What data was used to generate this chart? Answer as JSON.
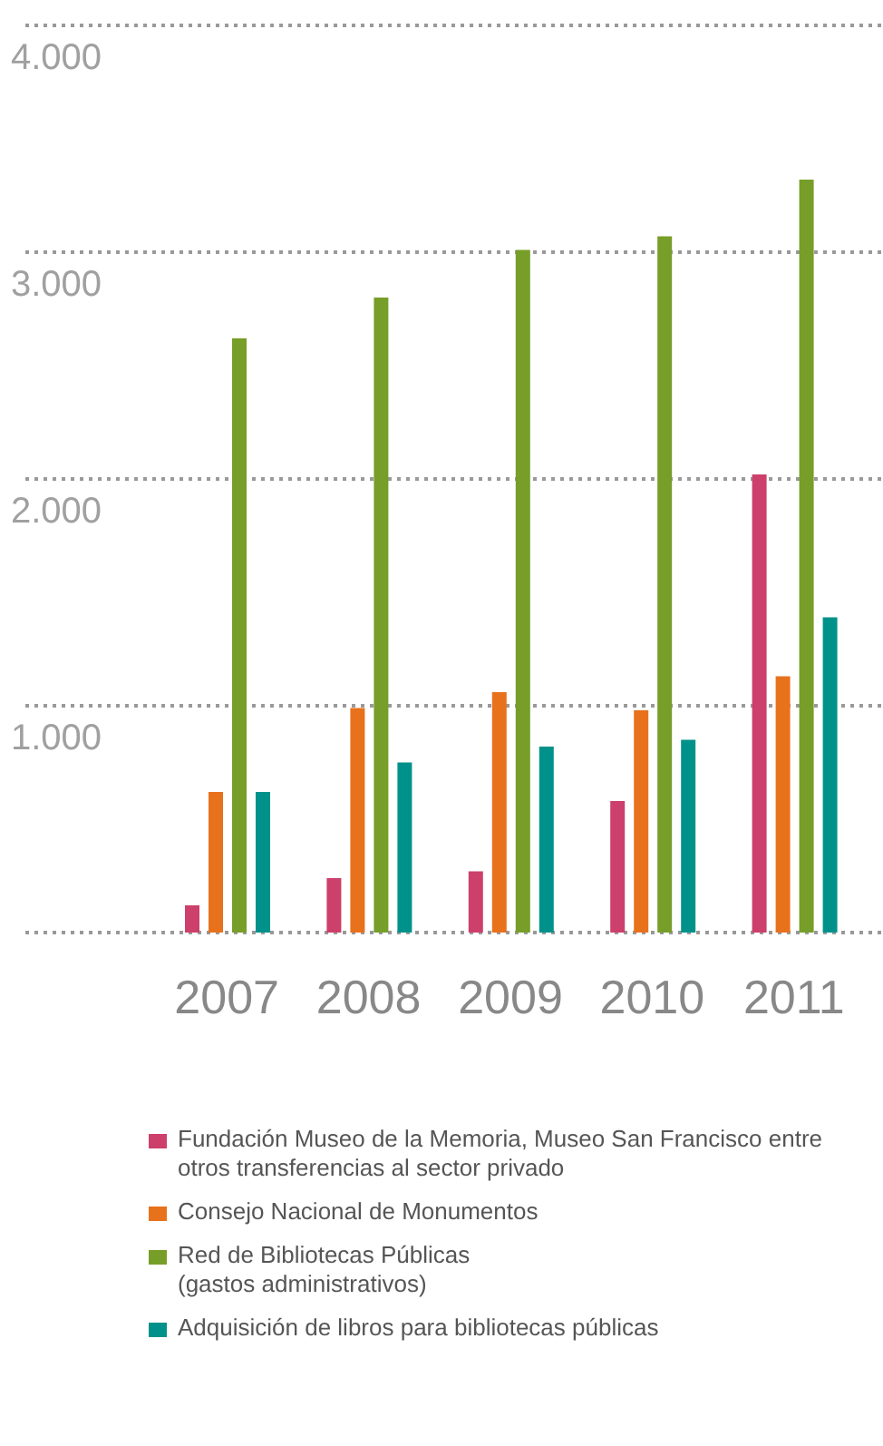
{
  "chart_data": {
    "type": "bar",
    "categories": [
      "2007",
      "2008",
      "2009",
      "2010",
      "2011"
    ],
    "series": [
      {
        "name": "Fundación Museo de la Memoria, Museo San Francisco entre otros transferencias al sector privado",
        "color": "#cc406b",
        "values": [
          120,
          240,
          270,
          580,
          2020
        ]
      },
      {
        "name": "Consejo Nacional de Monumentos",
        "color": "#e8711c",
        "values": [
          620,
          990,
          1060,
          980,
          1130
        ]
      },
      {
        "name": "Red de Bibliotecas Públicas\n(gastos administrativos)",
        "color": "#779e28",
        "values": [
          2620,
          2800,
          3010,
          3070,
          3320
        ]
      },
      {
        "name": "Adquisición de libros para bibliotecas públicas",
        "color": "#00928a",
        "values": [
          620,
          750,
          820,
          850,
          1390
        ]
      }
    ],
    "ylim": [
      0,
      4000
    ],
    "yticks": [
      {
        "value": 1000,
        "label": "1.000"
      },
      {
        "value": 2000,
        "label": "2.000"
      },
      {
        "value": 3000,
        "label": "3.000"
      },
      {
        "value": 4000,
        "label": "4.000"
      }
    ],
    "grid": "y",
    "legend": "bottom"
  }
}
